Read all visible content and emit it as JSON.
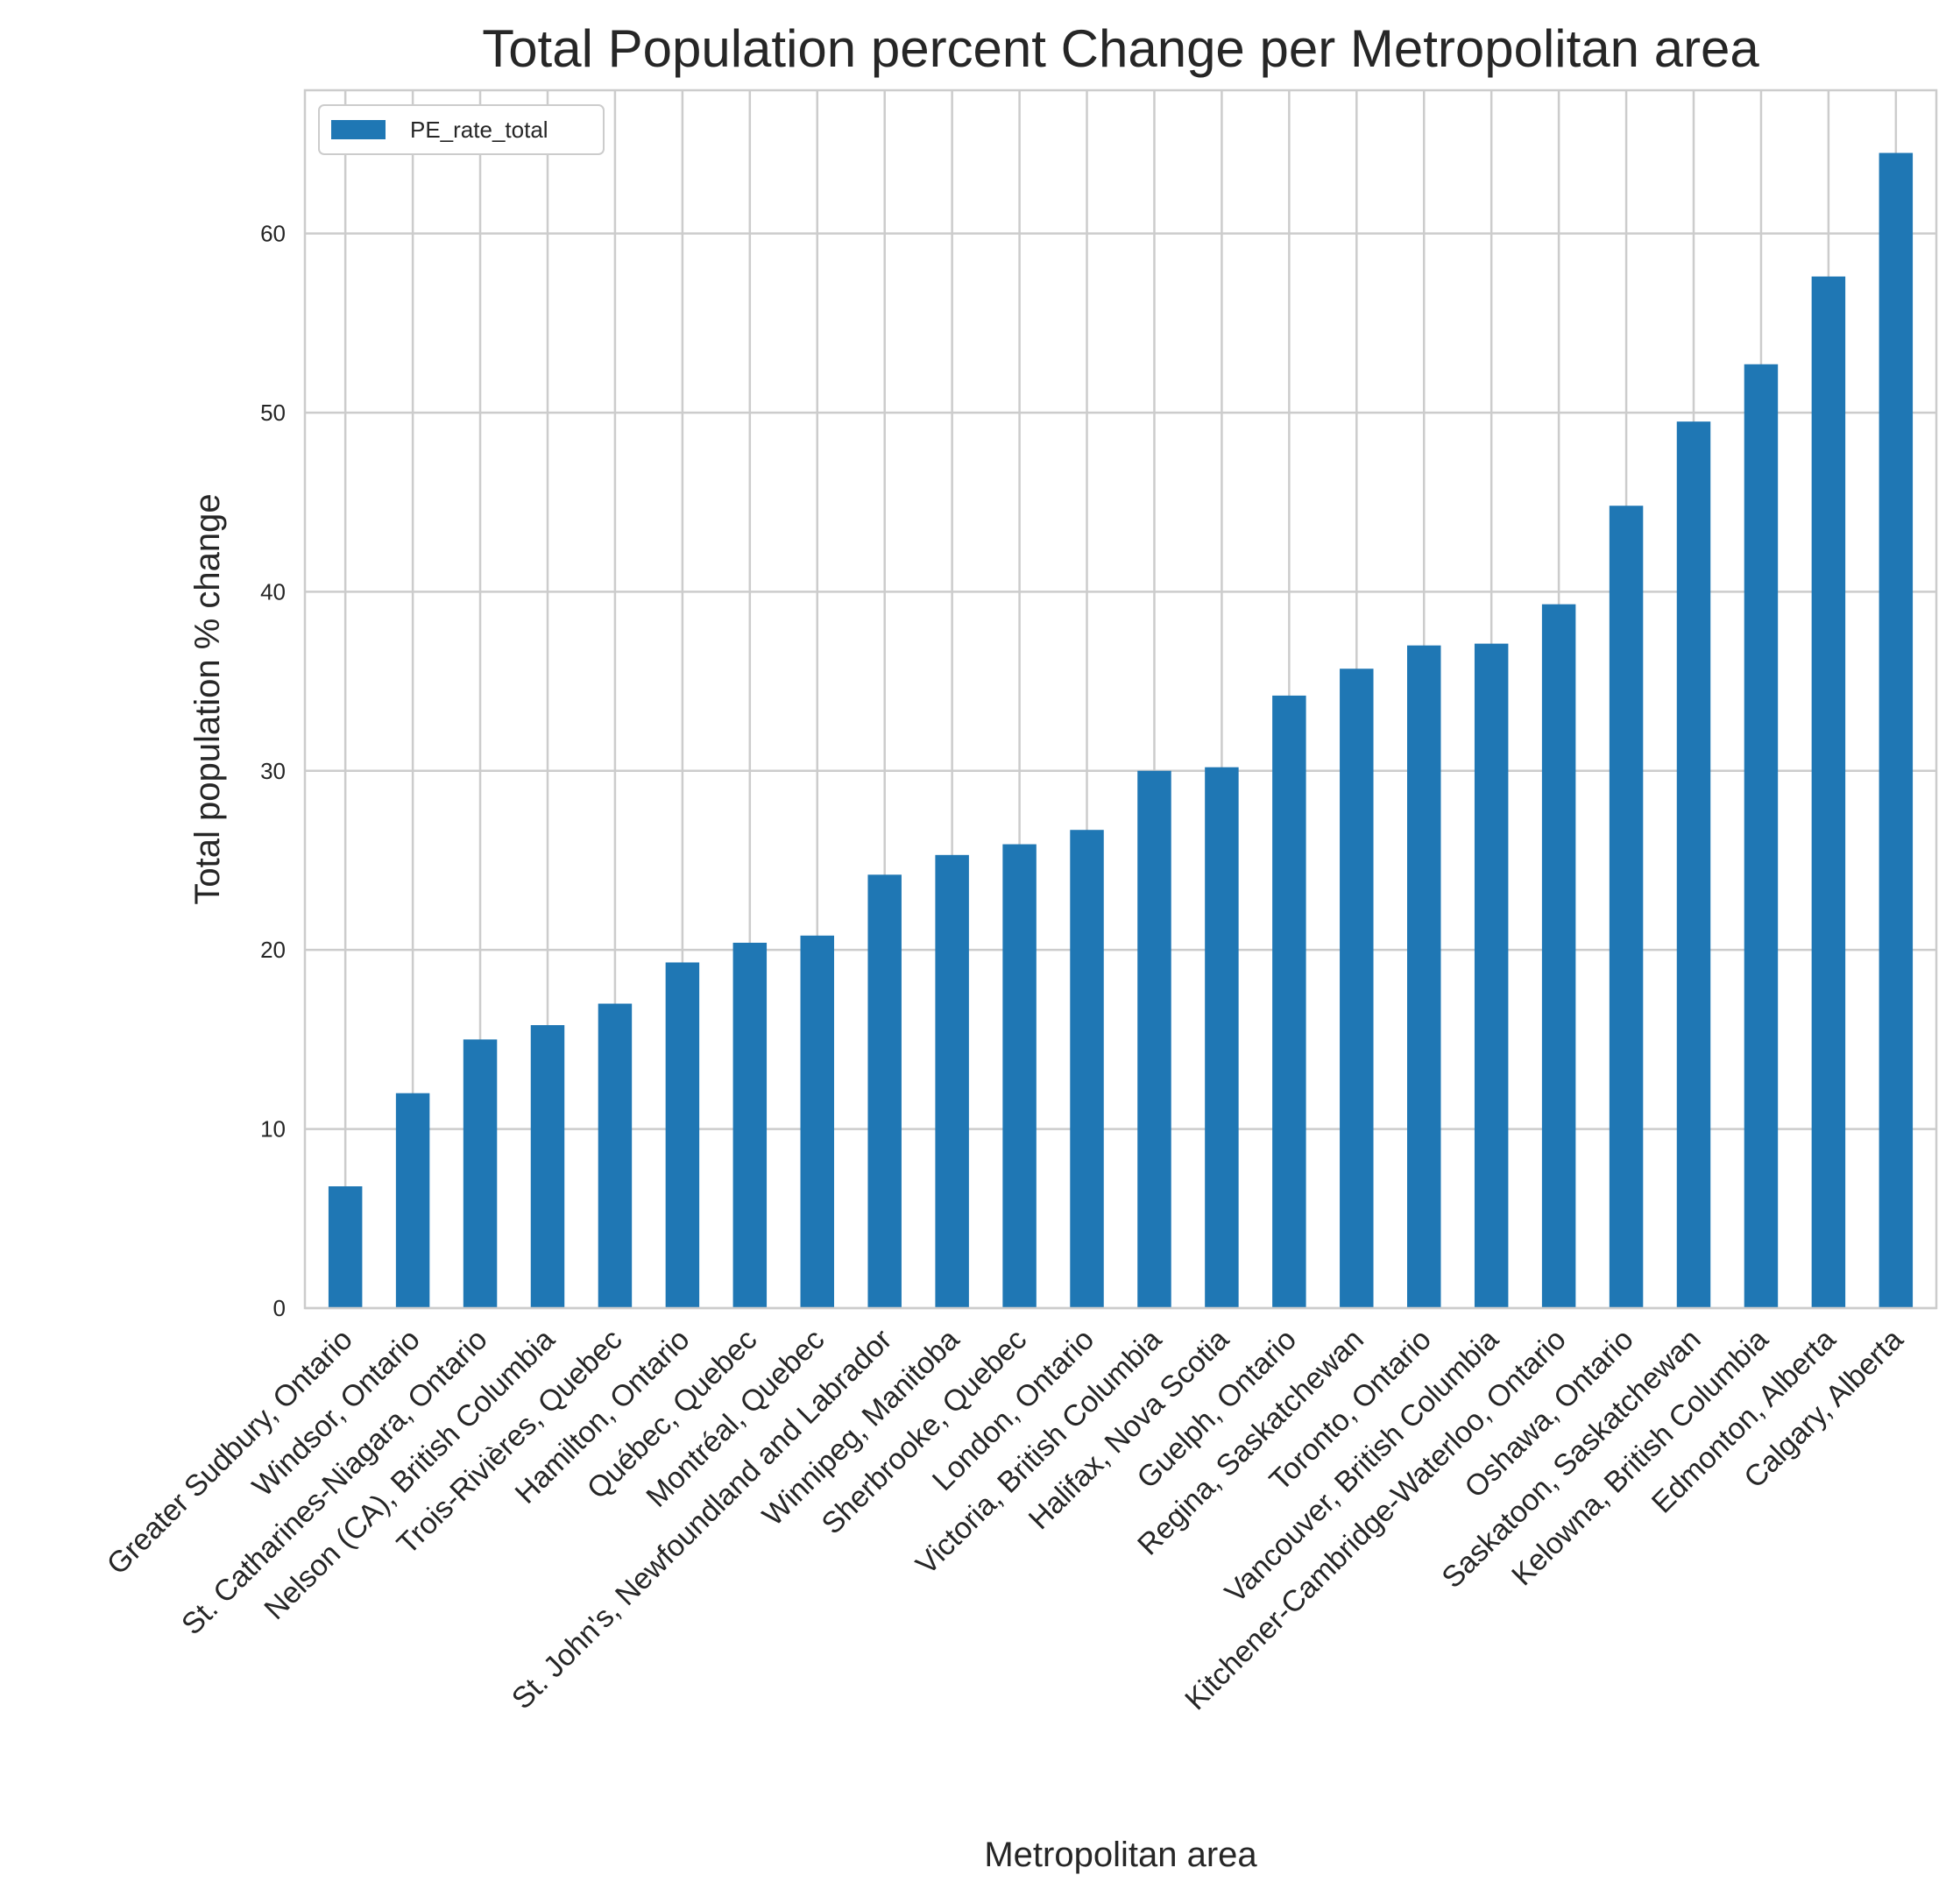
{
  "chart_data": {
    "type": "bar",
    "title": "Total Population percent Change per Metropolitan area",
    "xlabel": "Metropolitan area",
    "ylabel": "Total population % change",
    "ylim": [
      0,
      68
    ],
    "yticks": [
      0,
      10,
      20,
      30,
      40,
      50,
      60
    ],
    "grid": true,
    "legend": {
      "position": "top-left",
      "entries": [
        "PE_rate_total"
      ]
    },
    "colors": {
      "bar": "#1f77b4",
      "grid": "#cccccc",
      "text": "#262626"
    },
    "categories": [
      "Greater Sudbury, Ontario",
      "Windsor, Ontario",
      "St. Catharines-Niagara, Ontario",
      "Nelson (CA), British Columbia",
      "Trois-Rivières, Quebec",
      "Hamilton, Ontario",
      "Québec, Quebec",
      "Montréal, Quebec",
      "St. John's, Newfoundland and Labrador",
      "Winnipeg, Manitoba",
      "Sherbrooke, Quebec",
      "London, Ontario",
      "Victoria, British Columbia",
      "Halifax, Nova Scotia",
      "Guelph, Ontario",
      "Regina, Saskatchewan",
      "Toronto, Ontario",
      "Vancouver, British Columbia",
      "Kitchener-Cambridge-Waterloo, Ontario",
      "Oshawa, Ontario",
      "Saskatoon, Saskatchewan",
      "Kelowna, British Columbia",
      "Edmonton, Alberta",
      "Calgary, Alberta"
    ],
    "series": [
      {
        "name": "PE_rate_total",
        "values": [
          6.8,
          12.0,
          15.0,
          15.8,
          17.0,
          19.3,
          20.4,
          20.8,
          24.2,
          25.3,
          25.9,
          26.7,
          30.0,
          30.2,
          34.2,
          35.7,
          37.0,
          37.1,
          39.3,
          44.8,
          49.5,
          52.7,
          57.6,
          64.5
        ]
      }
    ]
  }
}
